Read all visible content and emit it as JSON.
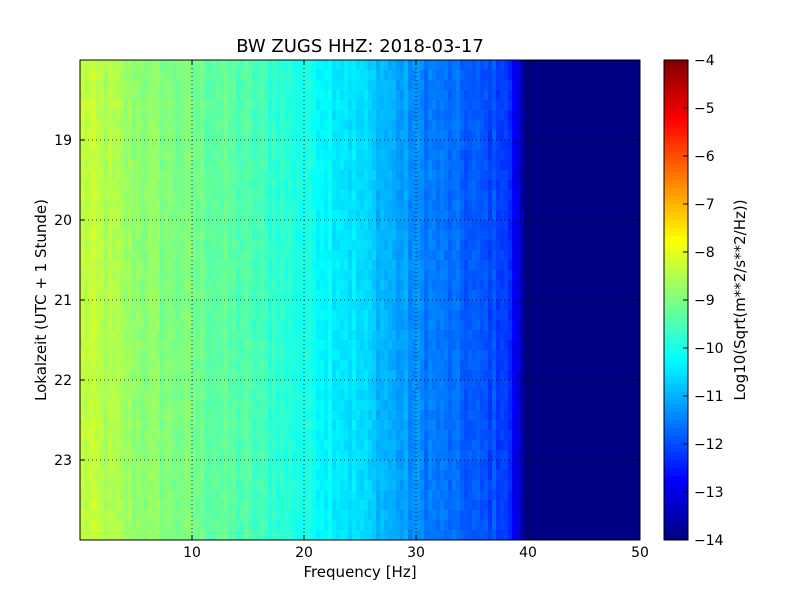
{
  "chart_data": {
    "type": "heatmap",
    "title": "BW ZUGS HHZ: 2018-03-17",
    "xlabel": "Frequency [Hz]",
    "ylabel": "Lokalzeit (UTC + 1 Stunde)",
    "xlim": [
      0,
      50
    ],
    "ylim": [
      24,
      18
    ],
    "x_ticks": [
      10,
      20,
      30,
      40,
      50
    ],
    "y_ticks": [
      19,
      20,
      21,
      22,
      23
    ],
    "grid": true,
    "colormap": "jet",
    "colorbar": {
      "label": "Log10(Sqrt(m**2/s**2/Hz))",
      "range": [
        -14,
        -4
      ],
      "ticks": [
        -14,
        -13,
        -12,
        -11,
        -10,
        -9,
        -8,
        -7,
        -6,
        -5,
        -4
      ]
    },
    "frequency_profile": [
      {
        "f": 0,
        "value": -8.3
      },
      {
        "f": 5,
        "value": -8.8
      },
      {
        "f": 10,
        "value": -9.1
      },
      {
        "f": 15,
        "value": -9.5
      },
      {
        "f": 20,
        "value": -10.0
      },
      {
        "f": 25,
        "value": -10.6
      },
      {
        "f": 30,
        "value": -11.4
      },
      {
        "f": 35,
        "value": -11.9
      },
      {
        "f": 38,
        "value": -12.1
      },
      {
        "f": 40,
        "value": -13.9
      },
      {
        "f": 50,
        "value": -14.0
      }
    ]
  }
}
